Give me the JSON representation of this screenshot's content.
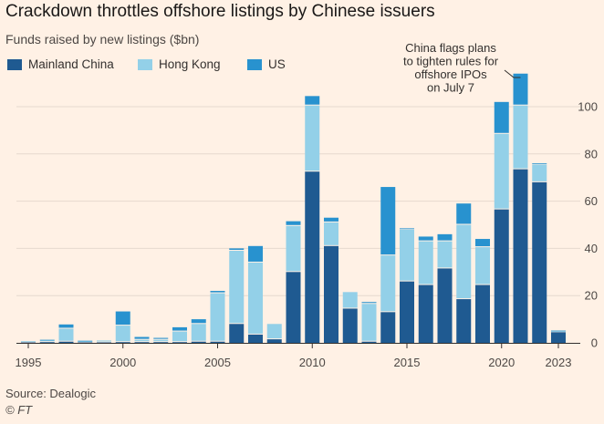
{
  "title": "Crackdown throttles offshore listings by Chinese issuers",
  "subtitle": "Funds raised by new listings ($bn)",
  "source": "Source: Dealogic",
  "credit": "© FT",
  "colors": {
    "background": "#fff1e5",
    "mainland": "#1f5a91",
    "hongkong": "#93d0e8",
    "us": "#2892cf",
    "grid": "#e6d9ce",
    "axis": "#33302e"
  },
  "annotation": {
    "lines": [
      "China flags plans",
      "to tighten rules for",
      "offshore IPOs",
      "on July 7"
    ],
    "year": 2021
  },
  "chart_data": {
    "type": "bar",
    "stacked": true,
    "x": [
      1995,
      1996,
      1997,
      1998,
      1999,
      2000,
      2001,
      2002,
      2003,
      2004,
      2005,
      2006,
      2007,
      2008,
      2009,
      2010,
      2011,
      2012,
      2013,
      2014,
      2015,
      2016,
      2017,
      2018,
      2019,
      2020,
      2021,
      2022,
      2023
    ],
    "series": [
      {
        "name": "Mainland China",
        "color": "#1f5a91",
        "values": [
          0.2,
          0.3,
          0.5,
          0.2,
          0.2,
          0.3,
          0.3,
          0.3,
          0.3,
          0.5,
          0.5,
          8,
          3.5,
          1.5,
          30,
          72.5,
          41,
          14.5,
          0.5,
          13,
          26,
          24.5,
          31.5,
          18.5,
          24.5,
          56.5,
          73.5,
          68,
          4.5
        ]
      },
      {
        "name": "Hong Kong",
        "color": "#93d0e8",
        "values": [
          0.5,
          0.7,
          5.5,
          0.5,
          0.8,
          7,
          1,
          1,
          4.5,
          7.5,
          20.5,
          31,
          30.5,
          6.5,
          19.5,
          28,
          10,
          7,
          16,
          24,
          22,
          18.5,
          11.5,
          31.5,
          16,
          32,
          27,
          7.5,
          0.5
        ]
      },
      {
        "name": "US",
        "color": "#2892cf",
        "values": [
          0,
          0.3,
          1.8,
          0.2,
          0,
          6,
          1.2,
          0.8,
          1.8,
          2,
          1,
          1,
          7,
          0,
          2,
          4,
          2,
          0,
          0.8,
          29,
          0.5,
          2,
          3,
          9,
          3.5,
          13.5,
          13.5,
          0.5,
          0.2
        ]
      }
    ],
    "ylim": [
      0,
      110
    ],
    "yticks": [
      0,
      20,
      40,
      60,
      80,
      100
    ],
    "xticks": [
      1995,
      2000,
      2005,
      2010,
      2015,
      2020,
      2023
    ],
    "grid": true,
    "y_axis_side": "right",
    "legend": "top-left"
  }
}
